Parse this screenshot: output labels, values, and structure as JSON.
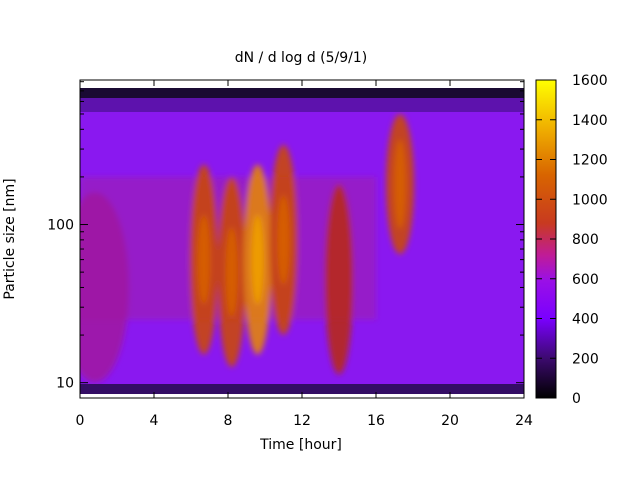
{
  "chart_data": {
    "type": "heatmap",
    "title": "dN / d log d (5/9/1)",
    "xlabel": "Time [hour]",
    "ylabel": "Particle size [nm]",
    "xlim": [
      0,
      24
    ],
    "x_ticks": [
      "0",
      "4",
      "8",
      "12",
      "16",
      "20",
      "24"
    ],
    "x_tick_values": [
      0,
      4,
      8,
      12,
      16,
      20,
      24
    ],
    "ylim": [
      8,
      820
    ],
    "y_scale": "log",
    "y_ticks": [
      "10",
      "100"
    ],
    "y_tick_values": [
      10,
      100
    ],
    "colorbar": {
      "range": [
        0,
        1600
      ],
      "ticks": [
        "0",
        "200",
        "400",
        "600",
        "800",
        "1000",
        "1200",
        "1400",
        "1600"
      ],
      "tick_values": [
        0,
        200,
        400,
        600,
        800,
        1000,
        1200,
        1400,
        1600
      ],
      "colormap": "gnuplot (black-purple-red-yellow)"
    },
    "grid": false,
    "intensity_peaks": [
      {
        "time": 0.8,
        "size": 40,
        "value": 800
      },
      {
        "time": 6.7,
        "size": 60,
        "value": 1000
      },
      {
        "time": 8.2,
        "size": 50,
        "value": 1050
      },
      {
        "time": 9.6,
        "size": 60,
        "value": 1250
      },
      {
        "time": 11.0,
        "size": 80,
        "value": 1000
      },
      {
        "time": 14.0,
        "size": 45,
        "value": 950
      },
      {
        "time": 17.3,
        "size": 180,
        "value": 1150
      }
    ]
  }
}
